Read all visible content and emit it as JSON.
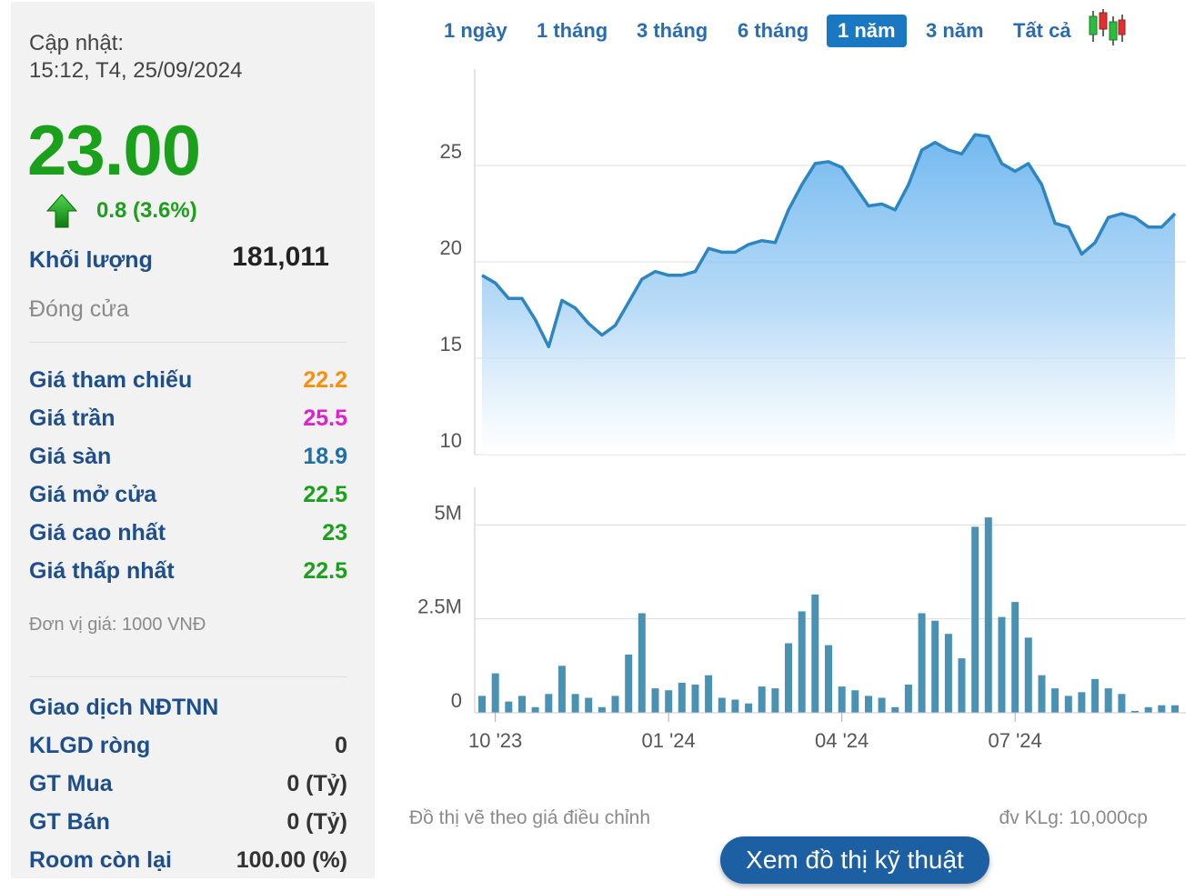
{
  "update": {
    "label": "Cập nhật:",
    "time": "15:12, T4, 25/09/2024"
  },
  "price": {
    "value": "23.00",
    "change": "0.8 (3.6%)",
    "direction": "up",
    "color": "#1aa01a"
  },
  "volume": {
    "label": "Khối lượng",
    "value": "181,011"
  },
  "status": "Đóng cửa",
  "price_rows": [
    {
      "label": "Giá tham chiếu",
      "value": "22.2",
      "color": "#f5900a"
    },
    {
      "label": "Giá trần",
      "value": "25.5",
      "color": "#e020d0"
    },
    {
      "label": "Giá sàn",
      "value": "18.9",
      "color": "#1e6fa8"
    },
    {
      "label": "Giá mở cửa",
      "value": "22.5",
      "color": "#1aa01a"
    },
    {
      "label": "Giá cao nhất",
      "value": "23",
      "color": "#1aa01a"
    },
    {
      "label": "Giá thấp nhất",
      "value": "22.5",
      "color": "#1aa01a"
    }
  ],
  "unit_note": "Đơn vị giá: 1000 VNĐ",
  "foreign": {
    "title": "Giao dịch NĐTNN",
    "rows": [
      {
        "label": "KLGD ròng",
        "value": "0"
      },
      {
        "label": "GT Mua",
        "value": "0 (Tỷ)"
      },
      {
        "label": "GT Bán",
        "value": "0 (Tỷ)"
      },
      {
        "label": "Room còn lại",
        "value": "100.00 (%)"
      }
    ]
  },
  "tabs": [
    {
      "label": "1 ngày",
      "active": false
    },
    {
      "label": "1 tháng",
      "active": false
    },
    {
      "label": "3 tháng",
      "active": false
    },
    {
      "label": "6 tháng",
      "active": false
    },
    {
      "label": "1 năm",
      "active": true
    },
    {
      "label": "3 năm",
      "active": false
    },
    {
      "label": "Tất cả",
      "active": false
    }
  ],
  "chart_icon": "candlestick-icon",
  "chart_note": "Đồ thị vẽ theo giá điều chỉnh",
  "volume_unit": "đv KLg: 10,000cp",
  "tech_button": "Xem đồ thị kỹ thuật",
  "chart_data": [
    {
      "type": "area",
      "series_color": "#2e86c1",
      "ylim": [
        10,
        30
      ],
      "yticks": [
        10,
        15,
        20,
        25
      ],
      "ytick_labels": [
        "10",
        "15",
        "20",
        "25"
      ],
      "x_tick_labels": [
        "10 '23",
        "01 '24",
        "04 '24",
        "07 '24"
      ],
      "x_tick_index": [
        1,
        14,
        27,
        40
      ],
      "values": [
        19.3,
        18.9,
        18.1,
        18.1,
        17.0,
        15.6,
        18.0,
        17.6,
        16.8,
        16.2,
        16.7,
        17.9,
        19.1,
        19.5,
        19.3,
        19.3,
        19.5,
        20.7,
        20.5,
        20.5,
        20.9,
        21.1,
        21.0,
        22.7,
        24.0,
        25.1,
        25.2,
        24.9,
        23.9,
        22.9,
        23.0,
        22.7,
        24.0,
        25.8,
        26.2,
        25.8,
        25.6,
        26.6,
        26.5,
        25.1,
        24.7,
        25.1,
        24.0,
        22.0,
        21.8,
        20.4,
        21.0,
        22.3,
        22.5,
        22.3,
        21.8,
        21.8,
        22.5
      ]
    },
    {
      "type": "bar",
      "bar_color": "#4a92b4",
      "ylim": [
        0,
        6000000
      ],
      "yticks": [
        0,
        2500000,
        5000000
      ],
      "ytick_labels": [
        "0",
        "2.5M",
        "5M"
      ],
      "x_tick_labels": [
        "10 '23",
        "01 '24",
        "04 '24",
        "07 '24"
      ],
      "x_tick_index": [
        1,
        14,
        27,
        40
      ],
      "values": [
        450000,
        1050000,
        300000,
        450000,
        150000,
        500000,
        1250000,
        500000,
        400000,
        150000,
        450000,
        1550000,
        2650000,
        650000,
        600000,
        800000,
        750000,
        1000000,
        400000,
        350000,
        250000,
        700000,
        650000,
        1850000,
        2700000,
        3150000,
        1800000,
        700000,
        600000,
        450000,
        400000,
        150000,
        750000,
        2650000,
        2450000,
        2100000,
        1450000,
        4950000,
        5200000,
        2550000,
        2950000,
        2000000,
        1000000,
        650000,
        450000,
        550000,
        900000,
        650000,
        500000,
        50000,
        150000,
        200000,
        200000
      ]
    }
  ]
}
